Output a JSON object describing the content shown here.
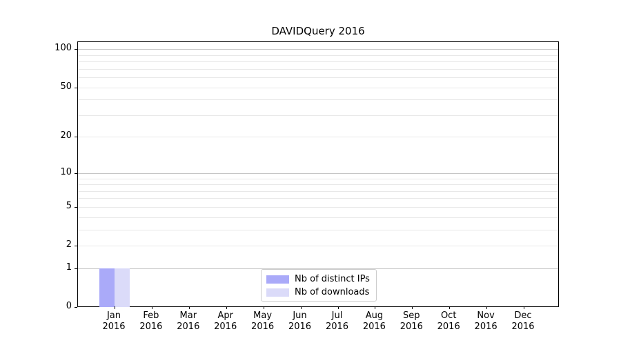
{
  "title": "DAVIDQuery 2016",
  "chart_data": {
    "type": "bar",
    "title": "DAVIDQuery 2016",
    "categories": [
      "Jan 2016",
      "Feb 2016",
      "Mar 2016",
      "Apr 2016",
      "May 2016",
      "Jun 2016",
      "Jul 2016",
      "Aug 2016",
      "Sep 2016",
      "Oct 2016",
      "Nov 2016",
      "Dec 2016"
    ],
    "x_tick_months": [
      "Jan",
      "Feb",
      "Mar",
      "Apr",
      "May",
      "Jun",
      "Jul",
      "Aug",
      "Sep",
      "Oct",
      "Nov",
      "Dec"
    ],
    "x_tick_year": "2016",
    "series": [
      {
        "name": "Nb of distinct IPs",
        "color": "#aaaaf9",
        "values": [
          1,
          0,
          0,
          0,
          0,
          0,
          0,
          0,
          0,
          0,
          0,
          0
        ]
      },
      {
        "name": "Nb of downloads",
        "color": "#dbdbf9",
        "values": [
          1,
          0,
          0,
          0,
          0,
          0,
          0,
          0,
          0,
          0,
          0,
          0
        ]
      }
    ],
    "xlabel": "",
    "ylabel": "",
    "yscale": "log10(1+y)",
    "ylim": [
      0,
      114
    ],
    "y_tick_labels": [
      0,
      1,
      2,
      5,
      10,
      20,
      50,
      100
    ],
    "grid": true,
    "legend_position": "lower center"
  },
  "axes": {
    "grid_major_values": [
      1,
      10,
      100
    ],
    "grid_minor_values": [
      2,
      3,
      4,
      5,
      6,
      7,
      8,
      9,
      20,
      30,
      40,
      50,
      60,
      70,
      80,
      90
    ],
    "colors": {
      "spine": "#000000",
      "grid_major": "#c6c6c6",
      "grid_minor": "#e8e8e8",
      "text": "#000000",
      "legend_border": "#cccccc",
      "background": "#ffffff"
    }
  }
}
